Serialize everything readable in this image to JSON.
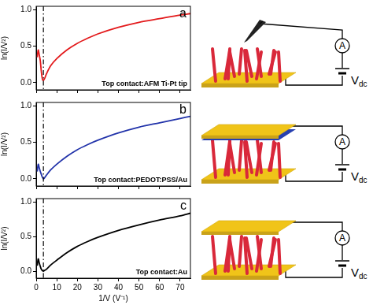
{
  "chart_data": [
    {
      "type": "line",
      "panel_label": "a",
      "annotation": "Top contact:AFM Ti-Pt tip",
      "y_label": "ln(I/V²)",
      "color": "#e31a1c",
      "vertical_line": 3.5,
      "tick_labels": "y",
      "x": [
        0.5,
        1,
        1.5,
        2,
        2.5,
        3,
        3.5,
        4,
        5,
        7,
        10,
        15,
        20,
        25,
        30,
        40,
        50,
        60,
        70,
        75
      ],
      "values": [
        0.35,
        0.45,
        0.38,
        0.3,
        0.15,
        0.05,
        0.03,
        0.05,
        0.12,
        0.23,
        0.33,
        0.45,
        0.54,
        0.61,
        0.67,
        0.76,
        0.83,
        0.88,
        0.93,
        0.95
      ],
      "xlim": [
        0,
        75
      ],
      "xticks": [
        0,
        10,
        20,
        30,
        40,
        50,
        60,
        70
      ],
      "ylim": [
        -0.1,
        1.05
      ],
      "yticks": [
        {
          "value": 0,
          "label": "0.0"
        },
        {
          "value": 0.5,
          "label": "0.5"
        },
        {
          "value": 1,
          "label": "1.0"
        }
      ],
      "grid": false
    },
    {
      "type": "line",
      "panel_label": "b",
      "annotation": "Top contact:PEDOT:PSS/Au",
      "y_label": "ln(I/V²)",
      "color": "#2233aa",
      "vertical_line": 3.5,
      "tick_labels": "y",
      "x": [
        0.5,
        1,
        1.5,
        2,
        2.5,
        3,
        3.5,
        4,
        5,
        7,
        10,
        15,
        20,
        25,
        30,
        40,
        50,
        60,
        70,
        75
      ],
      "values": [
        0.1,
        0.2,
        0.15,
        0.1,
        0.06,
        0.02,
        0.0,
        0.01,
        0.05,
        0.12,
        0.2,
        0.31,
        0.4,
        0.47,
        0.53,
        0.63,
        0.71,
        0.77,
        0.83,
        0.86
      ],
      "xlim": [
        0,
        75
      ],
      "xticks": [
        0,
        10,
        20,
        30,
        40,
        50,
        60,
        70
      ],
      "ylim": [
        -0.1,
        1.05
      ],
      "yticks": [
        {
          "value": 0,
          "label": "0.0"
        },
        {
          "value": 0.5,
          "label": "0.5"
        },
        {
          "value": 1,
          "label": "1.0"
        }
      ],
      "grid": false
    },
    {
      "type": "line",
      "panel_label": "c",
      "annotation": "Top contact:Au",
      "y_label": "ln(I/V²)",
      "x_label": "1/V (V⁻¹)",
      "color": "#000000",
      "vertical_line": 3.5,
      "x": [
        0.5,
        1,
        1.5,
        2,
        2.5,
        3,
        3.5,
        4,
        5,
        7,
        10,
        15,
        20,
        25,
        30,
        40,
        50,
        60,
        70,
        75
      ],
      "values": [
        0.08,
        0.18,
        0.12,
        0.07,
        0.03,
        0.01,
        0.0,
        0.01,
        0.03,
        0.09,
        0.16,
        0.27,
        0.36,
        0.43,
        0.49,
        0.59,
        0.67,
        0.74,
        0.8,
        0.84
      ],
      "xlim": [
        0,
        75
      ],
      "xticks": [
        0,
        10,
        20,
        30,
        40,
        50,
        60,
        70
      ],
      "ylim": [
        -0.1,
        1.05
      ],
      "yticks": [
        {
          "value": 0,
          "label": "0.0"
        },
        {
          "value": 0.5,
          "label": "0.5"
        },
        {
          "value": 1,
          "label": "1.0"
        }
      ],
      "grid": false
    }
  ],
  "diagrams": [
    {
      "meter": "A",
      "source": "V",
      "source_sub": "dc"
    },
    {
      "meter": "A",
      "source": "V",
      "source_sub": "dc"
    },
    {
      "meter": "A",
      "source": "V",
      "source_sub": "dc"
    }
  ]
}
